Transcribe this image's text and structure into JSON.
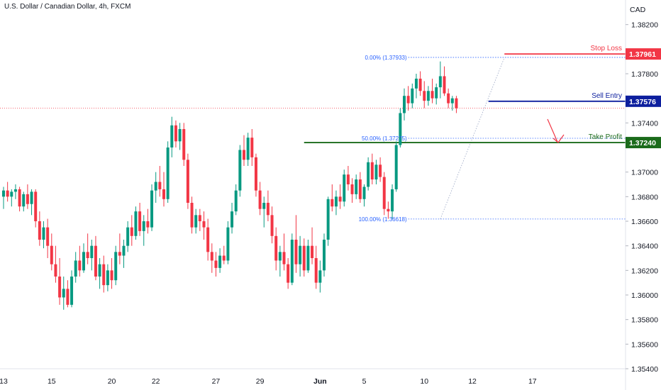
{
  "chart_data": {
    "type": "candlestick",
    "title": "U.S. Dollar / Canadian Dollar, 4h, FXCM",
    "currency": "CAD",
    "ylim": [
      1.354,
      1.384
    ],
    "y_ticks": [
      "1.38200",
      "1.37800",
      "1.37400",
      "1.37000",
      "1.36800",
      "1.36600",
      "1.36400",
      "1.36200",
      "1.36000",
      "1.35800",
      "1.35600",
      "1.35400"
    ],
    "y_tick_values": [
      1.382,
      1.378,
      1.374,
      1.37,
      1.368,
      1.366,
      1.364,
      1.362,
      1.36,
      1.358,
      1.356,
      1.354
    ],
    "x_ticks": [
      {
        "label": "13",
        "bar": 0
      },
      {
        "label": "15",
        "bar": 12
      },
      {
        "label": "20",
        "bar": 27
      },
      {
        "label": "22",
        "bar": 38
      },
      {
        "label": "27",
        "bar": 53
      },
      {
        "label": "29",
        "bar": 64
      },
      {
        "label": "Jun",
        "bar": 79
      },
      {
        "label": "5",
        "bar": 90
      },
      {
        "label": "10",
        "bar": 105
      },
      {
        "label": "12",
        "bar": 117
      },
      {
        "label": "17",
        "bar": 132
      }
    ],
    "candles": [
      [
        1.368,
        1.3688,
        1.367,
        1.3685
      ],
      [
        1.3685,
        1.3692,
        1.3676,
        1.368
      ],
      [
        1.368,
        1.3686,
        1.3672,
        1.3684
      ],
      [
        1.3684,
        1.369,
        1.3678,
        1.3686
      ],
      [
        1.3686,
        1.3688,
        1.3668,
        1.3672
      ],
      [
        1.3672,
        1.3684,
        1.3668,
        1.3682
      ],
      [
        1.3682,
        1.369,
        1.367,
        1.3674
      ],
      [
        1.3674,
        1.3686,
        1.3665,
        1.3684
      ],
      [
        1.3684,
        1.3686,
        1.3655,
        1.366
      ],
      [
        1.366,
        1.3668,
        1.364,
        1.3645
      ],
      [
        1.3645,
        1.366,
        1.3638,
        1.3655
      ],
      [
        1.3655,
        1.3662,
        1.363,
        1.364
      ],
      [
        1.364,
        1.365,
        1.362,
        1.3625
      ],
      [
        1.3625,
        1.364,
        1.361,
        1.3615
      ],
      [
        1.3615,
        1.363,
        1.3592,
        1.3598
      ],
      [
        1.3598,
        1.3615,
        1.3588,
        1.3605
      ],
      [
        1.3605,
        1.3612,
        1.359,
        1.3592
      ],
      [
        1.3592,
        1.362,
        1.359,
        1.3615
      ],
      [
        1.3615,
        1.3635,
        1.361,
        1.3628
      ],
      [
        1.3628,
        1.364,
        1.3615,
        1.362
      ],
      [
        1.362,
        1.3642,
        1.3618,
        1.3635
      ],
      [
        1.3635,
        1.365,
        1.3625,
        1.363
      ],
      [
        1.363,
        1.3645,
        1.362,
        1.364
      ],
      [
        1.364,
        1.3648,
        1.3612,
        1.3615
      ],
      [
        1.3615,
        1.363,
        1.3605,
        1.3625
      ],
      [
        1.3625,
        1.3632,
        1.3602,
        1.3608
      ],
      [
        1.3608,
        1.3625,
        1.3603,
        1.362
      ],
      [
        1.362,
        1.363,
        1.3605,
        1.3612
      ],
      [
        1.3612,
        1.364,
        1.3608,
        1.3635
      ],
      [
        1.3635,
        1.365,
        1.3625,
        1.3632
      ],
      [
        1.3632,
        1.3645,
        1.3622,
        1.364
      ],
      [
        1.364,
        1.366,
        1.3635,
        1.3655
      ],
      [
        1.3655,
        1.3665,
        1.364,
        1.3648
      ],
      [
        1.3648,
        1.3672,
        1.3645,
        1.3668
      ],
      [
        1.3668,
        1.3675,
        1.3648,
        1.3652
      ],
      [
        1.3652,
        1.3665,
        1.364,
        1.366
      ],
      [
        1.366,
        1.367,
        1.365,
        1.3655
      ],
      [
        1.3655,
        1.369,
        1.3652,
        1.3685
      ],
      [
        1.3685,
        1.37,
        1.3675,
        1.3692
      ],
      [
        1.3692,
        1.3705,
        1.368,
        1.3686
      ],
      [
        1.3686,
        1.37,
        1.3672,
        1.3678
      ],
      [
        1.3678,
        1.3725,
        1.3675,
        1.372
      ],
      [
        1.372,
        1.3745,
        1.3712,
        1.3738
      ],
      [
        1.3738,
        1.3742,
        1.372,
        1.3725
      ],
      [
        1.3725,
        1.374,
        1.3718,
        1.3735
      ],
      [
        1.3735,
        1.374,
        1.3705,
        1.371
      ],
      [
        1.371,
        1.3715,
        1.367,
        1.3675
      ],
      [
        1.3675,
        1.368,
        1.365,
        1.3655
      ],
      [
        1.3655,
        1.367,
        1.365,
        1.3665
      ],
      [
        1.3665,
        1.367,
        1.3652,
        1.366
      ],
      [
        1.366,
        1.3668,
        1.3645,
        1.3655
      ],
      [
        1.3655,
        1.3662,
        1.3628,
        1.3635
      ],
      [
        1.3635,
        1.3642,
        1.3618,
        1.3628
      ],
      [
        1.3628,
        1.3635,
        1.3615,
        1.3622
      ],
      [
        1.3622,
        1.3638,
        1.3618,
        1.3632
      ],
      [
        1.3632,
        1.364,
        1.3625,
        1.3628
      ],
      [
        1.3628,
        1.366,
        1.3625,
        1.3655
      ],
      [
        1.3655,
        1.3675,
        1.365,
        1.3668
      ],
      [
        1.3668,
        1.369,
        1.3665,
        1.3685
      ],
      [
        1.3685,
        1.3722,
        1.368,
        1.3718
      ],
      [
        1.3718,
        1.373,
        1.3705,
        1.371
      ],
      [
        1.371,
        1.3732,
        1.3705,
        1.3728
      ],
      [
        1.3728,
        1.3735,
        1.3705,
        1.3712
      ],
      [
        1.3712,
        1.3715,
        1.368,
        1.3685
      ],
      [
        1.3685,
        1.3692,
        1.3665,
        1.367
      ],
      [
        1.367,
        1.368,
        1.3655,
        1.3675
      ],
      [
        1.3675,
        1.3685,
        1.366,
        1.3665
      ],
      [
        1.3665,
        1.3672,
        1.3642,
        1.3648
      ],
      [
        1.3648,
        1.3655,
        1.362,
        1.3628
      ],
      [
        1.3628,
        1.364,
        1.3615,
        1.3635
      ],
      [
        1.3635,
        1.365,
        1.362,
        1.3625
      ],
      [
        1.3625,
        1.363,
        1.3605,
        1.361
      ],
      [
        1.361,
        1.365,
        1.3608,
        1.3645
      ],
      [
        1.3645,
        1.3665,
        1.3618,
        1.3625
      ],
      [
        1.3625,
        1.3648,
        1.3615,
        1.364
      ],
      [
        1.364,
        1.3646,
        1.3615,
        1.362
      ],
      [
        1.362,
        1.3645,
        1.3618,
        1.364
      ],
      [
        1.364,
        1.3655,
        1.3625,
        1.363
      ],
      [
        1.363,
        1.364,
        1.3605,
        1.361
      ],
      [
        1.361,
        1.3628,
        1.3602,
        1.362
      ],
      [
        1.362,
        1.365,
        1.3615,
        1.3645
      ],
      [
        1.3645,
        1.368,
        1.364,
        1.3678
      ],
      [
        1.3678,
        1.369,
        1.3668,
        1.3672
      ],
      [
        1.3672,
        1.3685,
        1.3665,
        1.368
      ],
      [
        1.368,
        1.369,
        1.367,
        1.3676
      ],
      [
        1.3676,
        1.3702,
        1.3672,
        1.3698
      ],
      [
        1.3698,
        1.3705,
        1.3685,
        1.369
      ],
      [
        1.369,
        1.3695,
        1.3675,
        1.3682
      ],
      [
        1.3682,
        1.3698,
        1.3678,
        1.3694
      ],
      [
        1.3694,
        1.37,
        1.3675,
        1.3678
      ],
      [
        1.3678,
        1.369,
        1.3672,
        1.3688
      ],
      [
        1.3688,
        1.3712,
        1.3685,
        1.3708
      ],
      [
        1.3708,
        1.3715,
        1.369,
        1.3694
      ],
      [
        1.3694,
        1.371,
        1.369,
        1.3706
      ],
      [
        1.3706,
        1.3712,
        1.3692,
        1.3696
      ],
      [
        1.3696,
        1.37,
        1.3665,
        1.367
      ],
      [
        1.367,
        1.3676,
        1.3662,
        1.3668
      ],
      [
        1.3668,
        1.369,
        1.3662,
        1.3686
      ],
      [
        1.3686,
        1.3725,
        1.3684,
        1.3722
      ],
      [
        1.3722,
        1.3752,
        1.372,
        1.3748
      ],
      [
        1.3748,
        1.3768,
        1.3742,
        1.3762
      ],
      [
        1.3762,
        1.377,
        1.375,
        1.3756
      ],
      [
        1.3756,
        1.3772,
        1.3752,
        1.3768
      ],
      [
        1.3768,
        1.378,
        1.376,
        1.3776
      ],
      [
        1.3776,
        1.3782,
        1.3762,
        1.3766
      ],
      [
        1.3766,
        1.3774,
        1.3752,
        1.3758
      ],
      [
        1.3758,
        1.377,
        1.3754,
        1.3766
      ],
      [
        1.3766,
        1.3776,
        1.3756,
        1.376
      ],
      [
        1.376,
        1.3772,
        1.3755,
        1.3769
      ],
      [
        1.3769,
        1.379,
        1.376,
        1.3778
      ],
      [
        1.3778,
        1.3786,
        1.3762,
        1.3764
      ],
      [
        1.3764,
        1.3768,
        1.3752,
        1.3756
      ],
      [
        1.3756,
        1.3762,
        1.375,
        1.376
      ],
      [
        1.376,
        1.3762,
        1.3748,
        1.3752
      ]
    ],
    "levels": [
      {
        "name": "Stop Loss",
        "value": 1.37961,
        "tag": "1.37961",
        "color": "#f23645"
      },
      {
        "name": "Sell Entry",
        "value": 1.37576,
        "tag": "1.37576",
        "color": "#0d1f9e"
      },
      {
        "name": "Take Profit",
        "value": 1.3724,
        "tag": "1.37240",
        "color": "#1b6b1b"
      }
    ],
    "fib_levels": [
      {
        "label": "0.00% (1.37933)",
        "value": 1.37933
      },
      {
        "label": "50.00% (1.37275)",
        "value": 1.37275
      },
      {
        "label": "100.00% (1.36618)",
        "value": 1.36618
      }
    ],
    "current_price": 1.3752,
    "colors": {
      "up": "#089981",
      "down": "#f23645",
      "fib": "#2962ff"
    }
  }
}
